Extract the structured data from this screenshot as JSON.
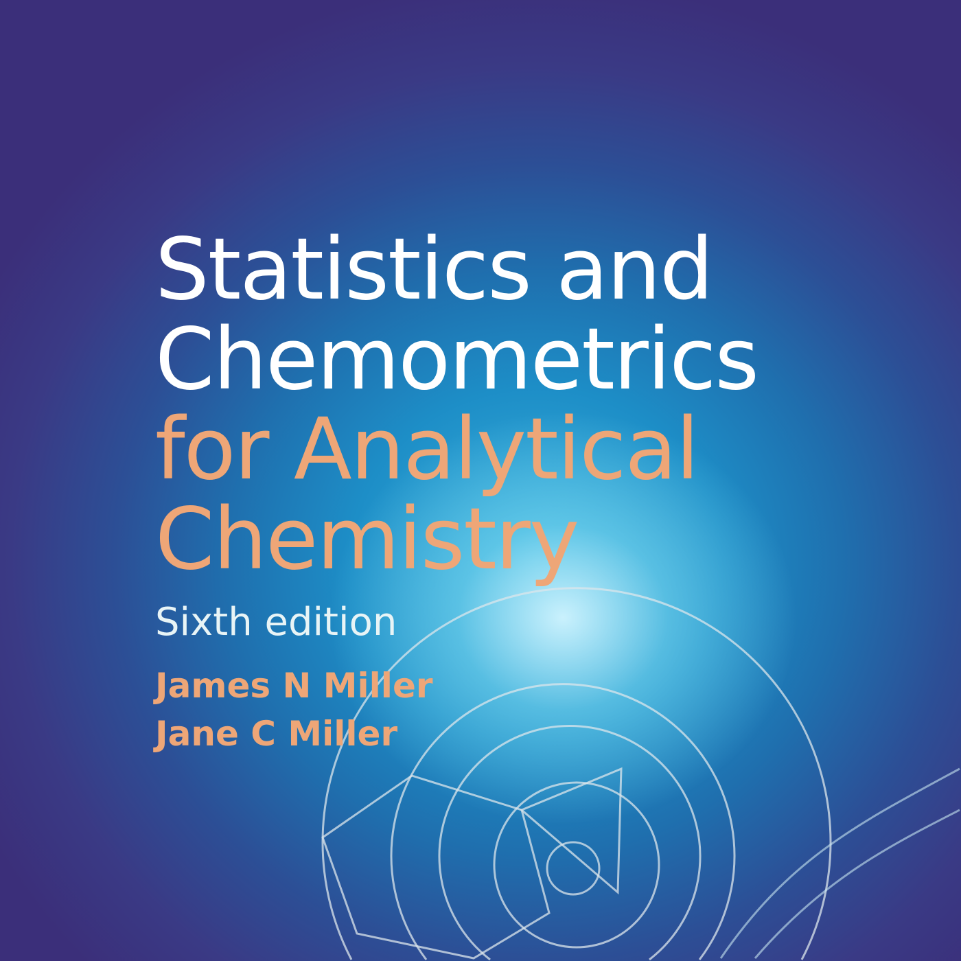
{
  "cover": {
    "title_line1": "Statistics and",
    "title_line2": "Chemometrics",
    "title_line3": "for Analytical",
    "title_line4": "Chemistry",
    "edition": "Sixth edition",
    "authors": [
      "James N Miller",
      "Jane C Miller"
    ]
  },
  "colors": {
    "title_white": "#ffffff",
    "title_orange": "#eea677",
    "background_center": "#3cb3de",
    "background_edge": "#3b2f7a"
  }
}
